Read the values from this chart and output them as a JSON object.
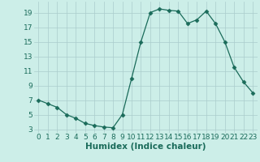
{
  "x": [
    0,
    1,
    2,
    3,
    4,
    5,
    6,
    7,
    8,
    9,
    10,
    11,
    12,
    13,
    14,
    15,
    16,
    17,
    18,
    19,
    20,
    21,
    22,
    23
  ],
  "y": [
    7,
    6.5,
    6,
    5,
    4.5,
    3.8,
    3.5,
    3.3,
    3.2,
    5,
    10,
    15,
    19,
    19.5,
    19.3,
    19.2,
    17.5,
    18,
    19.2,
    17.5,
    15,
    11.5,
    9.5,
    8
  ],
  "xlabel": "Humidex (Indice chaleur)",
  "xlim": [
    -0.5,
    23.5
  ],
  "ylim": [
    2.5,
    20.5
  ],
  "yticks": [
    3,
    5,
    7,
    9,
    11,
    13,
    15,
    17,
    19
  ],
  "xticks": [
    0,
    1,
    2,
    3,
    4,
    5,
    6,
    7,
    8,
    9,
    10,
    11,
    12,
    13,
    14,
    15,
    16,
    17,
    18,
    19,
    20,
    21,
    22,
    23
  ],
  "line_color": "#1a6b5a",
  "marker": "D",
  "marker_size": 2.5,
  "bg_color": "#cceee8",
  "grid_color": "#aacccc",
  "tick_color": "#1a6b5a",
  "label_color": "#1a6b5a",
  "font_size_ticks": 6.5,
  "font_size_label": 7.5
}
